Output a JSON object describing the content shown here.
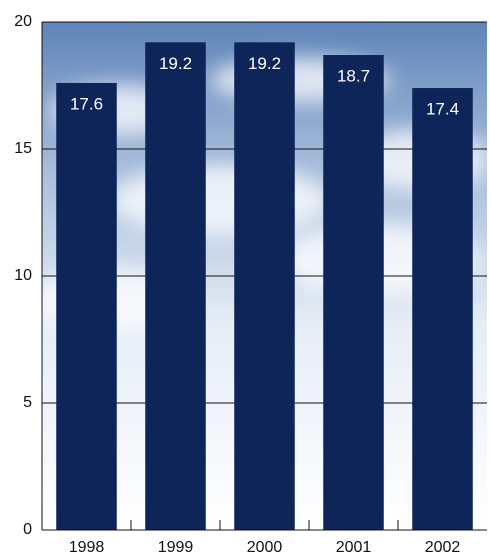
{
  "chart_data": {
    "type": "bar",
    "categories": [
      "1998",
      "1999",
      "2000",
      "2001",
      "2002"
    ],
    "values": [
      17.6,
      19.2,
      19.2,
      18.7,
      17.4
    ],
    "color": "#0d2559",
    "ylim": [
      0,
      20
    ],
    "yticks": [
      0,
      5,
      10,
      15,
      20
    ],
    "grid": true
  }
}
